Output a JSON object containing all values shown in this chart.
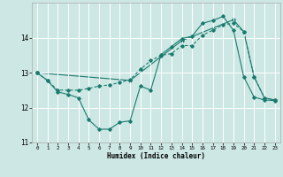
{
  "xlabel": "Humidex (Indice chaleur)",
  "background_color": "#cde8e4",
  "grid_color": "#ffffff",
  "line_color": "#1a7a6e",
  "xlim": [
    -0.5,
    23.5
  ],
  "ylim": [
    11,
    15
  ],
  "yticks": [
    11,
    12,
    13,
    14
  ],
  "xticks": [
    0,
    1,
    2,
    3,
    4,
    5,
    6,
    7,
    8,
    9,
    10,
    11,
    12,
    13,
    14,
    15,
    16,
    17,
    18,
    19,
    20,
    21,
    22,
    23
  ],
  "line1_x": [
    0,
    1,
    2,
    3,
    4,
    5,
    6,
    7,
    8,
    9,
    10,
    11,
    12,
    13,
    14,
    15,
    16,
    17,
    18,
    19,
    20,
    21,
    22,
    23
  ],
  "line1_y": [
    13.0,
    12.78,
    12.45,
    12.38,
    12.28,
    11.65,
    11.38,
    11.38,
    11.58,
    11.62,
    12.62,
    12.5,
    13.52,
    13.75,
    13.98,
    14.05,
    14.42,
    14.5,
    14.62,
    14.22,
    12.88,
    12.3,
    12.22,
    12.2
  ],
  "line2_x": [
    0,
    1,
    2,
    3,
    4,
    5,
    6,
    7,
    8,
    9,
    10,
    11,
    12,
    13,
    14,
    15,
    16,
    17,
    18,
    19,
    20,
    21,
    22,
    23
  ],
  "line2_y": [
    13.0,
    12.78,
    12.5,
    12.5,
    12.5,
    12.55,
    12.62,
    12.65,
    12.72,
    12.8,
    13.1,
    13.35,
    13.5,
    13.55,
    13.78,
    13.78,
    14.08,
    14.22,
    14.38,
    14.42,
    14.18,
    12.88,
    12.28,
    12.22
  ],
  "line3_x": [
    0,
    9,
    14,
    19,
    20,
    21,
    22,
    23
  ],
  "line3_y": [
    13.0,
    12.78,
    13.92,
    14.52,
    14.18,
    12.88,
    12.28,
    12.22
  ]
}
